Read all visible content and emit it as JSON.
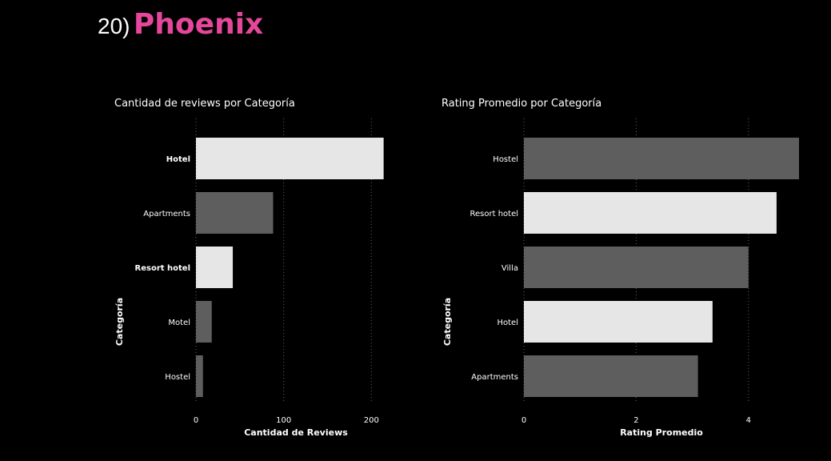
{
  "header": {
    "number": "20)",
    "city": "Phoenix",
    "city_color": "#e5479b"
  },
  "colors": {
    "highlight": "#e6e6e6",
    "normal": "#5e5e5e",
    "grid": "#666666",
    "text": "#ffffff"
  },
  "chart_data": [
    {
      "type": "bar",
      "orientation": "horizontal",
      "title": "Cantidad de reviews por Categoría",
      "xlabel": "Cantidad de Reviews",
      "ylabel": "Categoría",
      "xlim": [
        0,
        228
      ],
      "xticks": [
        0,
        100,
        200
      ],
      "grid": true,
      "categories": [
        "Hotel",
        "Apartments",
        "Resort hotel",
        "Motel",
        "Hostel"
      ],
      "values": [
        214,
        88,
        42,
        18,
        8
      ],
      "highlighted": [
        true,
        false,
        true,
        false,
        false
      ],
      "bold_labels": [
        true,
        false,
        true,
        false,
        false
      ]
    },
    {
      "type": "bar",
      "orientation": "horizontal",
      "title": "Rating Promedio por Categoría",
      "xlabel": "Rating Promedio",
      "ylabel": "Categoría",
      "xlim": [
        0,
        4.9
      ],
      "xticks": [
        0,
        2,
        4
      ],
      "grid": true,
      "categories": [
        "Hostel",
        "Resort hotel",
        "Villa",
        "Hotel",
        "Apartments"
      ],
      "values": [
        4.9,
        4.5,
        4.0,
        3.36,
        3.1
      ],
      "highlighted": [
        false,
        true,
        false,
        true,
        false
      ],
      "bold_labels": [
        false,
        false,
        false,
        false,
        false
      ]
    }
  ]
}
